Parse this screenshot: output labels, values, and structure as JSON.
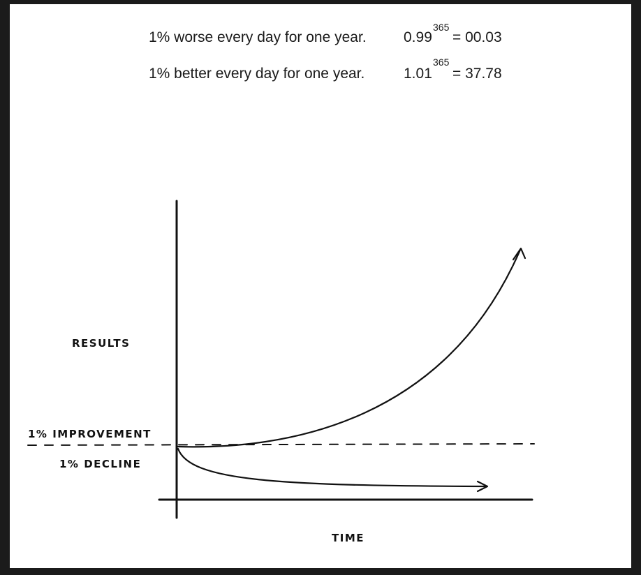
{
  "equations": [
    {
      "text": "1% worse every day for one year.",
      "base": "0.99",
      "exponent": "365",
      "result": "= 00.03"
    },
    {
      "text": "1% better every day for one year.",
      "base": "1.01",
      "exponent": "365",
      "result": "= 37.78"
    }
  ],
  "diagram": {
    "y_label": "RESULTS",
    "x_label": "TIME",
    "improvement_label": "1% IMPROVEMENT",
    "decline_label": "1% DECLINE"
  }
}
